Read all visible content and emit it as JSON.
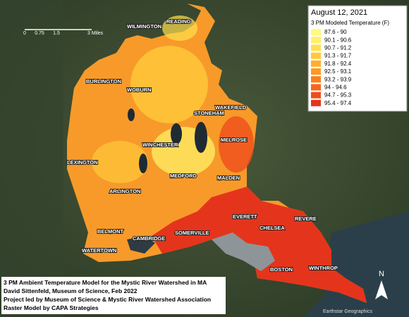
{
  "legend": {
    "date": "August 12, 2021",
    "title": "3 PM Modeled Temperature (F)",
    "items": [
      {
        "label": "87.6 - 90",
        "color": "#fffa80"
      },
      {
        "label": "90.1 - 90.6",
        "color": "#fff066"
      },
      {
        "label": "90.7 - 91.2",
        "color": "#ffe04d"
      },
      {
        "label": "91.3 - 91.7",
        "color": "#ffc93a"
      },
      {
        "label": "91.8 - 92.4",
        "color": "#ffb02a"
      },
      {
        "label": "92.5 - 93.1",
        "color": "#ff9822"
      },
      {
        "label": "93.2 - 93.9",
        "color": "#fc7e1c"
      },
      {
        "label": "94 - 94.6",
        "color": "#f7661b"
      },
      {
        "label": "94.7 - 95.3",
        "color": "#ef4d1b"
      },
      {
        "label": "95.4 - 97.4",
        "color": "#e5341c"
      }
    ]
  },
  "scale_bar": {
    "labels": [
      "0",
      "0.75",
      "1.5",
      "3 Miles"
    ]
  },
  "places": [
    "WILMINGTON",
    "READING",
    "BURLINGTON",
    "WOBURN",
    "STONEHAM",
    "WAKEFIELD",
    "MELROSE",
    "WINCHESTER",
    "LEXINGTON",
    "MEDFORD",
    "MALDEN",
    "ARLINGTON",
    "EVERETT",
    "REVERE",
    "CHELSEA",
    "BELMONT",
    "CAMBRIDGE",
    "SOMERVILLE",
    "WATERTOWN",
    "BOSTON",
    "WINTHROP"
  ],
  "credits": [
    "3 PM Ambient Temperature Model for the Mystic River Watershed in MA",
    "David Sittenfeld, Museum of Science, Feb 2022",
    "Project led by Museum of Science & Mystic River Watershed Association",
    "Raster Model by CAPA Strategies"
  ],
  "north_arrow": "N",
  "attribution": "Earthstar Geographics"
}
